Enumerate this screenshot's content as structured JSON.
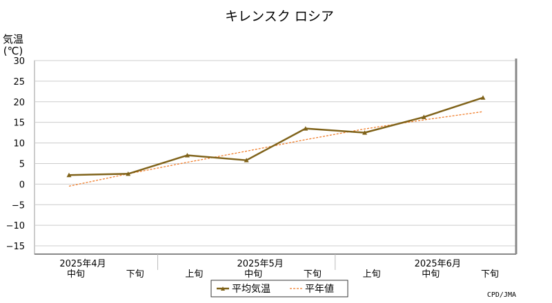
{
  "chart_data": {
    "type": "line",
    "title": "キレンスク ロシア",
    "ylabel": "気温",
    "ylabel_unit": "(℃)",
    "ylim": [
      -17,
      30
    ],
    "yticks": [
      30,
      25,
      20,
      15,
      10,
      5,
      0,
      -5,
      -10,
      -15
    ],
    "ytick_labels": [
      "30",
      "25",
      "20",
      "15",
      "10",
      "5",
      "0",
      "−5",
      "−10",
      "−15"
    ],
    "categories": [
      "中旬",
      "下旬",
      "上旬",
      "中旬",
      "下旬",
      "上旬",
      "中旬",
      "下旬"
    ],
    "months": [
      "2025年4月",
      "2025年5月",
      "2025年6月"
    ],
    "grid": true,
    "legend_position": "bottom",
    "series": [
      {
        "name": "平均気温",
        "style": "solid-with-triangle-markers",
        "color": "#7f6219",
        "values": [
          2.2,
          2.5,
          7.0,
          5.8,
          13.5,
          12.5,
          16.3,
          21.0
        ]
      },
      {
        "name": "平年値",
        "style": "dashed",
        "color": "#f07c28",
        "values": [
          -0.5,
          2.5,
          5.3,
          8.0,
          10.8,
          13.4,
          15.6,
          17.6
        ]
      }
    ],
    "source": "CPD/JMA"
  }
}
